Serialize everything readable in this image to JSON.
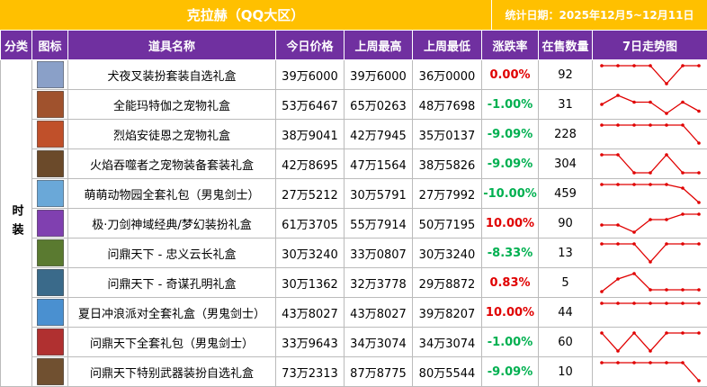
{
  "header": {
    "title": "克拉赫（QQ大区）",
    "date": "统计日期：2025年12月5~12月11日"
  },
  "columns": [
    "分类",
    "图标",
    "道具名称",
    "今日价格",
    "上周最高",
    "上周最低",
    "涨跌率",
    "在售数量",
    "7日走势图"
  ],
  "category": "时装",
  "up_color": "#e00000",
  "down_color": "#00b050",
  "trend_color": "#e00000",
  "rows": [
    {
      "name": "犬夜叉装扮套装自选礼盒",
      "today": "39万6000",
      "high": "39万6000",
      "low": "36万0000",
      "change": "0.00%",
      "stock": 92,
      "trend": [
        10,
        10,
        10,
        10,
        0,
        10,
        10
      ]
    },
    {
      "name": "全能玛特伽之宠物礼盒",
      "today": "53万6467",
      "high": "65万0263",
      "low": "48万7698",
      "change": "-1.00%",
      "stock": 31,
      "trend": [
        6,
        10,
        7,
        7,
        2,
        7,
        3
      ]
    },
    {
      "name": "烈焰安徒恩之宠物礼盒",
      "today": "38万9041",
      "high": "42万7945",
      "low": "35万0137",
      "change": "-9.09%",
      "stock": 228,
      "trend": [
        10,
        10,
        10,
        10,
        10,
        10,
        0
      ]
    },
    {
      "name": "火焰吞噬者之宠物装备套装礼盒",
      "today": "42万8695",
      "high": "47万1564",
      "low": "38万5826",
      "change": "-9.09%",
      "stock": 304,
      "trend": [
        10,
        10,
        0,
        0,
        10,
        0,
        0
      ]
    },
    {
      "name": "萌萌动物园全套礼包（男鬼剑士）",
      "today": "27万5212",
      "high": "30万5791",
      "low": "27万7992",
      "change": "-10.00%",
      "stock": 459,
      "trend": [
        10,
        10,
        10,
        10,
        10,
        8,
        0
      ]
    },
    {
      "name": "极·刀剑神域经典/梦幻装扮礼盒",
      "today": "61万3705",
      "high": "55万7914",
      "low": "50万7195",
      "change": "10.00%",
      "stock": 90,
      "trend": [
        4,
        4,
        0,
        7,
        7,
        10,
        10
      ]
    },
    {
      "name": "问鼎天下 - 忠义云长礼盒",
      "today": "30万3240",
      "high": "33万0807",
      "low": "30万3240",
      "change": "-8.33%",
      "stock": 13,
      "trend": [
        10,
        10,
        10,
        0,
        10,
        10,
        10
      ]
    },
    {
      "name": "问鼎天下 - 奇谋孔明礼盒",
      "today": "30万1362",
      "high": "32万3778",
      "low": "29万8872",
      "change": "0.83%",
      "stock": 5,
      "trend": [
        0,
        7,
        10,
        1,
        1,
        1,
        1
      ]
    },
    {
      "name": "夏日冲浪派对全套礼盒（男鬼剑士）",
      "today": "43万8027",
      "high": "43万8027",
      "low": "39万8207",
      "change": "10.00%",
      "stock": 44,
      "trend": [
        10,
        10,
        10,
        10,
        10,
        10,
        10
      ]
    },
    {
      "name": "问鼎天下全套礼包（男鬼剑士）",
      "today": "33万9643",
      "high": "34万3074",
      "low": "34万3074",
      "change": "-1.00%",
      "stock": 60,
      "trend": [
        10,
        0,
        10,
        0,
        10,
        10,
        10
      ]
    },
    {
      "name": "问鼎天下特别武器装扮自选礼盒",
      "today": "73万2313",
      "high": "87万8775",
      "low": "80万5544",
      "change": "-9.09%",
      "stock": 10,
      "trend": [
        10,
        10,
        10,
        10,
        10,
        10,
        0
      ]
    }
  ]
}
